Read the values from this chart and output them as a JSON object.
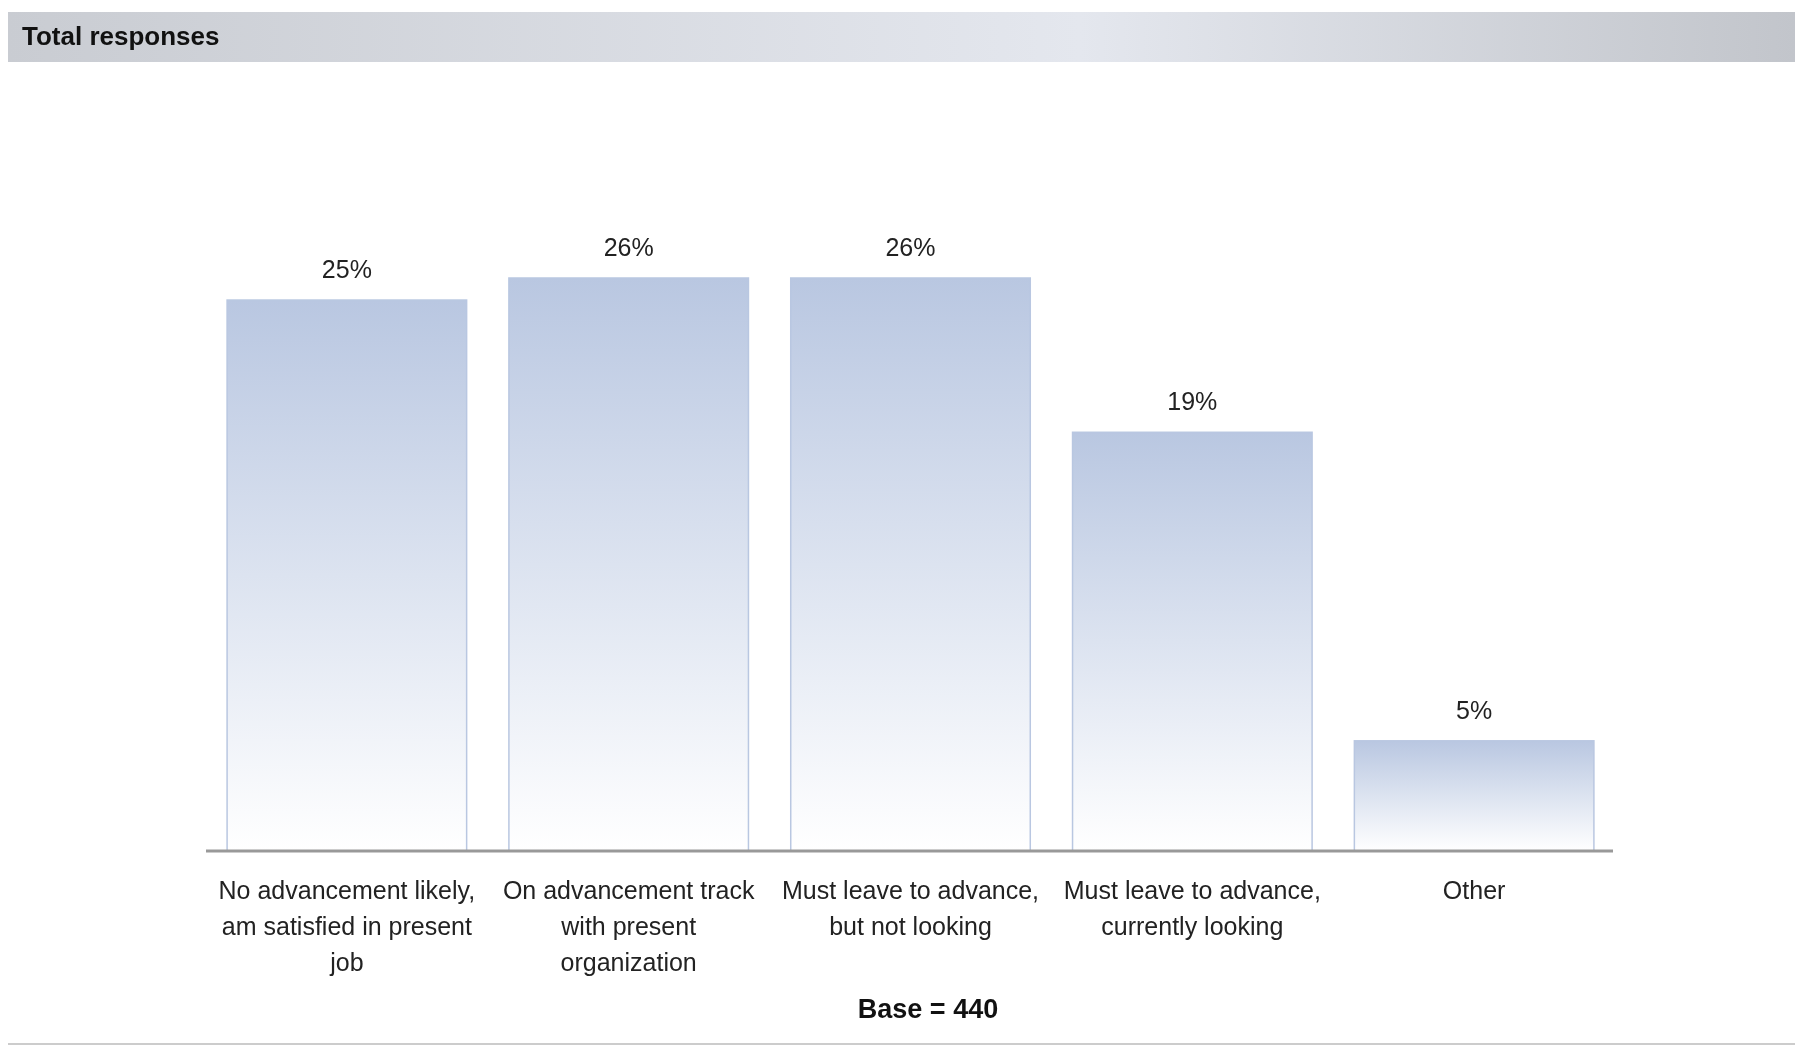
{
  "chart_data": {
    "type": "bar",
    "title": "Total responses",
    "categories": [
      "No advancement likely, am satisfied in present job",
      "On advancement track with present organization",
      "Must leave to advance, but not looking",
      "Must leave to advance, currently looking",
      "Other"
    ],
    "values": [
      25,
      26,
      26,
      19,
      5
    ],
    "color": "#b9c7e1",
    "value_labels": [
      "25%",
      "26%",
      "26%",
      "19%",
      "5%"
    ],
    "annotations": [
      "Base = 440"
    ]
  }
}
